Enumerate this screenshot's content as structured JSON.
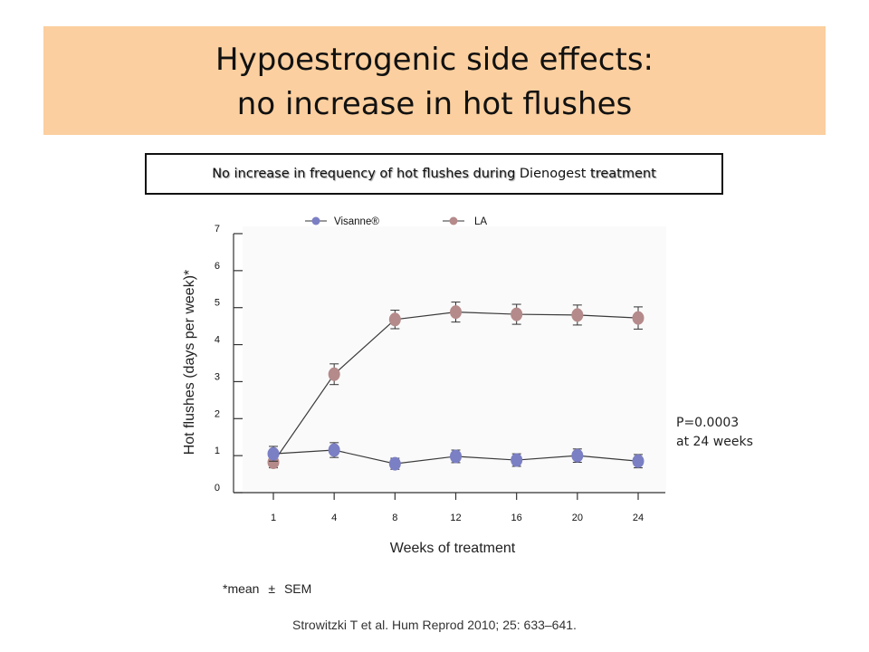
{
  "slide": {
    "title_line1": "Hypoestrogenic side effects:",
    "title_line2": "no increase in hot flushes",
    "callout_part1": "No increase in frequency of hot flushes during",
    "callout_part2": "Dienogest",
    "callout_part3": "treatment",
    "pvalue_line1": "P=0.0003",
    "pvalue_line2": "at 24 weeks",
    "footnote_prefix": "*mean",
    "footnote_symbol": "±",
    "footnote_suffix": "SEM",
    "reference": "Strowitzki T et al. Hum Reprod 2010; 25: 633–641."
  },
  "colors": {
    "title_band": "#fbcf9f",
    "visanne": "#7b7fc4",
    "la": "#b58a8a",
    "axis": "#333333"
  },
  "chart_data": {
    "type": "line",
    "xlabel": "Weeks of treatment",
    "ylabel": "Hot flushes (days per week)*",
    "categories": [
      "1",
      "4",
      "8",
      "12",
      "16",
      "20",
      "24"
    ],
    "ylim": [
      0,
      7
    ],
    "yticks": [
      0,
      1,
      2,
      3,
      4,
      5,
      6,
      7
    ],
    "grid": false,
    "legend_position": "top",
    "series": [
      {
        "name": "Visanne®",
        "color": "#7b7fc4",
        "values": [
          1.05,
          1.15,
          0.78,
          0.98,
          0.88,
          1.0,
          0.85
        ],
        "errors": [
          0.2,
          0.2,
          0.15,
          0.17,
          0.17,
          0.18,
          0.18
        ]
      },
      {
        "name": "LA",
        "color": "#b58a8a",
        "values": [
          0.82,
          3.2,
          4.68,
          4.88,
          4.82,
          4.8,
          4.72
        ],
        "errors": [
          0.15,
          0.28,
          0.25,
          0.27,
          0.27,
          0.27,
          0.3
        ]
      }
    ]
  }
}
